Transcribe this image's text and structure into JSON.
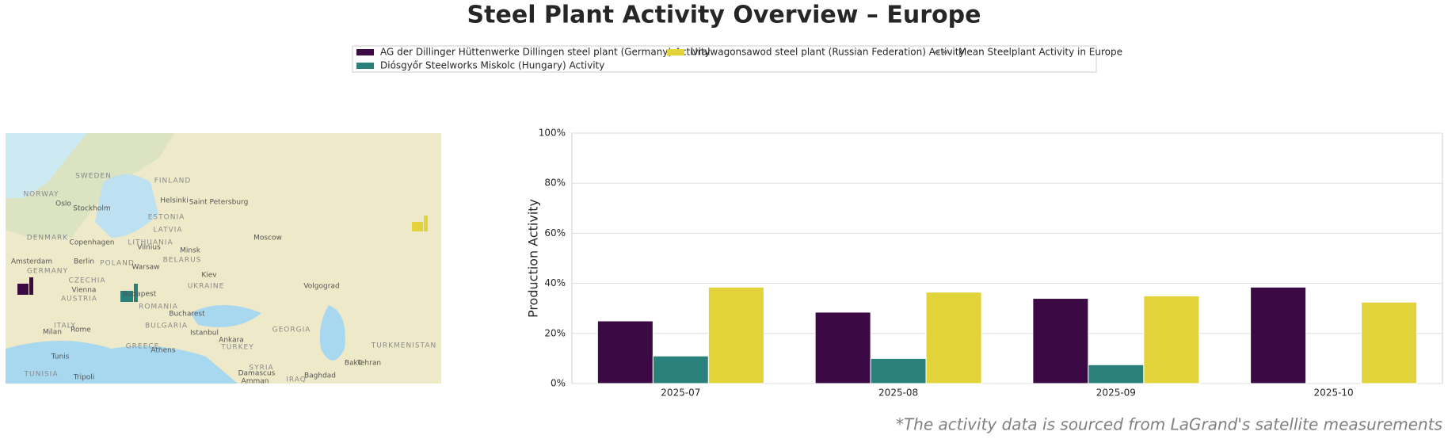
{
  "chart_data": {
    "type": "bar",
    "title": "Steel Plant Activity Overview – Europe",
    "ylabel": "Production Activity",
    "categories": [
      "2025-07",
      "2025-08",
      "2025-09",
      "2025-10"
    ],
    "series": [
      {
        "name": "AG der Dillinger Hüttenwerke Dillingen steel plant (Germany) Activity",
        "color": "#3b0a45",
        "values": [
          25,
          28.5,
          34,
          38.5
        ]
      },
      {
        "name": "Diósgyőr Steelworks Miskolc (Hungary) Activity",
        "color": "#2a817b",
        "values": [
          11,
          10,
          7.5,
          null
        ]
      },
      {
        "name": "Uralwagonsawod steel plant (Russian Federation) Activity",
        "color": "#e2d33b",
        "values": [
          38.5,
          36.5,
          35,
          32.5
        ]
      },
      {
        "name": "Mean Steelplant Activity in Europe",
        "color": "#808080",
        "type": "line",
        "dashed": true,
        "values": [
          null,
          null,
          null,
          null
        ]
      }
    ],
    "ylim": [
      0,
      100
    ],
    "yticks": [
      {
        "value": 0,
        "label": "0%"
      },
      {
        "value": 20,
        "label": "20%"
      },
      {
        "value": 40,
        "label": "40%"
      },
      {
        "value": 60,
        "label": "60%"
      },
      {
        "value": 80,
        "label": "80%"
      },
      {
        "value": 100,
        "label": "100%"
      }
    ],
    "grid": true,
    "legend": "top",
    "footnote": "*The activity data is sourced from LaGrand's satellite measurements"
  },
  "map": {
    "labels": [
      "SWEDEN",
      "FINLAND",
      "NORWAY",
      "Oslo",
      "Stockholm",
      "Helsinki",
      "Saint Petersburg",
      "ESTONIA",
      "LATVIA",
      "DENMARK",
      "Copenhagen",
      "LITHUANIA",
      "Vilnius",
      "Minsk",
      "Moscow",
      "BELARUS",
      "Berlin",
      "POLAND",
      "Warsaw",
      "Amsterdam",
      "GERMANY",
      "CZECHIA",
      "Kiev",
      "UKRAINE",
      "Vienna",
      "AUSTRIA",
      "Budapest",
      "ROMANIA",
      "Volgograd",
      "Milan",
      "ITALY",
      "Rome",
      "Bucharest",
      "BULGARIA",
      "Istanbul",
      "Ankara",
      "TURKEY",
      "GREECE",
      "Athens",
      "GEORGIA",
      "Baku",
      "TURKMENISTAN",
      "Tunis",
      "TUNISIA",
      "Tripoli",
      "SYRIA",
      "Damascus",
      "Baghdad",
      "IRAQ",
      "Tehran",
      "Amman"
    ]
  }
}
